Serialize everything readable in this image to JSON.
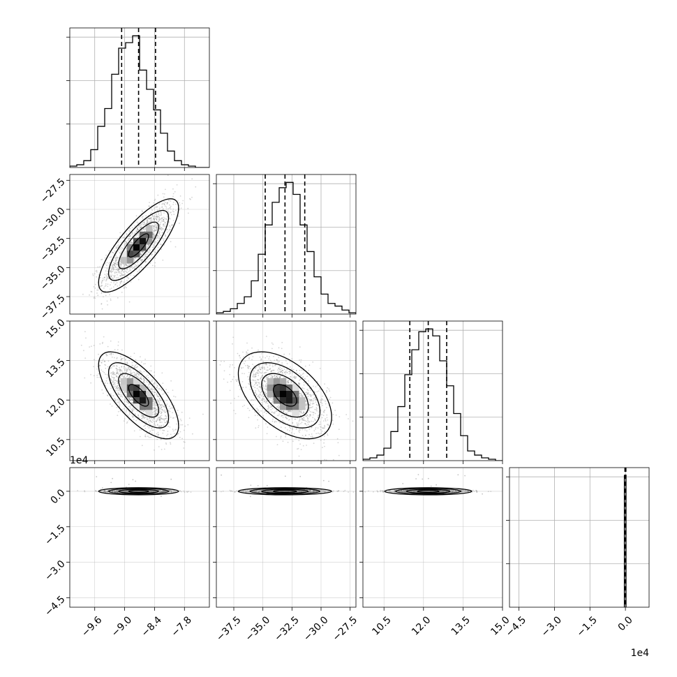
{
  "chart_data": {
    "type": "corner",
    "grid": true,
    "parameters": [
      {
        "range": [
          -10.1,
          -7.3
        ],
        "ticks": [
          -9.6,
          -9.0,
          -8.4,
          -7.8
        ],
        "tick_labels": [
          "−9.6",
          "−9.0",
          "−8.4",
          "−7.8"
        ],
        "multiplier": ""
      },
      {
        "range": [
          -39.0,
          -27.0
        ],
        "ticks": [
          -37.5,
          -35.0,
          -32.5,
          -30.0,
          -27.5
        ],
        "tick_labels": [
          "−37.5",
          "−35.0",
          "−32.5",
          "−30.0",
          "−27.5"
        ],
        "multiplier": ""
      },
      {
        "range": [
          9.7,
          15.0
        ],
        "ticks": [
          10.5,
          12.0,
          13.5,
          15.0
        ],
        "tick_labels": [
          "10.5",
          "12.0",
          "13.5",
          "15.0"
        ],
        "multiplier": ""
      },
      {
        "range": [
          -4.9,
          1.0
        ],
        "ticks": [
          -4.5,
          -3.0,
          -1.5,
          0.0
        ],
        "tick_labels": [
          "−4.5",
          "−3.0",
          "−1.5",
          "0.0"
        ],
        "multiplier": "1e4"
      }
    ],
    "marginals": [
      {
        "bin_edges": [
          -10.1,
          -9.96,
          -9.82,
          -9.68,
          -9.54,
          -9.4,
          -9.26,
          -9.12,
          -8.98,
          -8.84,
          -8.7,
          -8.56,
          -8.42,
          -8.28,
          -8.14,
          -8.0,
          -7.86,
          -7.72,
          -7.58,
          -7.44,
          -7.3
        ],
        "counts": [
          1,
          2,
          5,
          13,
          30,
          43,
          68,
          87,
          91,
          96,
          71,
          57,
          42,
          25,
          12,
          5,
          2,
          1,
          0,
          0
        ],
        "quantiles": [
          -9.06,
          -8.72,
          -8.38
        ]
      },
      {
        "bin_edges": [
          -39.0,
          -38.4,
          -37.8,
          -37.2,
          -36.6,
          -36.0,
          -35.4,
          -34.8,
          -34.2,
          -33.6,
          -33.0,
          -32.4,
          -31.8,
          -31.2,
          -30.6,
          -30.0,
          -29.4,
          -28.8,
          -28.2,
          -27.6,
          -27.0
        ],
        "counts": [
          1,
          2,
          4,
          8,
          13,
          25,
          45,
          67,
          84,
          95,
          99,
          90,
          67,
          47,
          28,
          15,
          8,
          6,
          3,
          1
        ],
        "quantiles": [
          -34.8,
          -33.1,
          -31.4
        ]
      },
      {
        "bin_edges": [
          9.7,
          9.965,
          10.23,
          10.495,
          10.76,
          11.025,
          11.29,
          11.555,
          11.82,
          12.085,
          12.35,
          12.615,
          12.88,
          13.145,
          13.41,
          13.675,
          13.94,
          14.205,
          14.47,
          14.735,
          15.0
        ],
        "counts": [
          1,
          2,
          4,
          9,
          21,
          39,
          62,
          80,
          93,
          95,
          90,
          72,
          54,
          34,
          18,
          7,
          4,
          2,
          1,
          0
        ],
        "quantiles": [
          11.48,
          12.18,
          12.88
        ]
      },
      {
        "bin_edges": [
          -0.045,
          0.025
        ],
        "counts": [
          100
        ],
        "quantiles": [
          -0.02,
          0.0,
          0.02
        ]
      }
    ],
    "pairs": [
      {
        "row": 1,
        "col": 0,
        "center": [
          -8.72,
          -33.1
        ],
        "sd": [
          0.34,
          1.7
        ],
        "rho": 0.8
      },
      {
        "row": 2,
        "col": 0,
        "center": [
          -8.72,
          12.18
        ],
        "sd": [
          0.34,
          0.7
        ],
        "rho": -0.7
      },
      {
        "row": 2,
        "col": 1,
        "center": [
          -33.1,
          12.18
        ],
        "sd": [
          1.7,
          0.7
        ],
        "rho": -0.5
      },
      {
        "row": 3,
        "col": 0,
        "center": [
          -8.72,
          0.0
        ],
        "sd": [
          0.34,
          0.03
        ],
        "rho": 0.0
      },
      {
        "row": 3,
        "col": 1,
        "center": [
          -33.1,
          0.0
        ],
        "sd": [
          1.7,
          0.03
        ],
        "rho": 0.0
      },
      {
        "row": 3,
        "col": 2,
        "center": [
          12.18,
          0.0
        ],
        "sd": [
          0.7,
          0.03
        ],
        "rho": 0.0
      }
    ]
  }
}
